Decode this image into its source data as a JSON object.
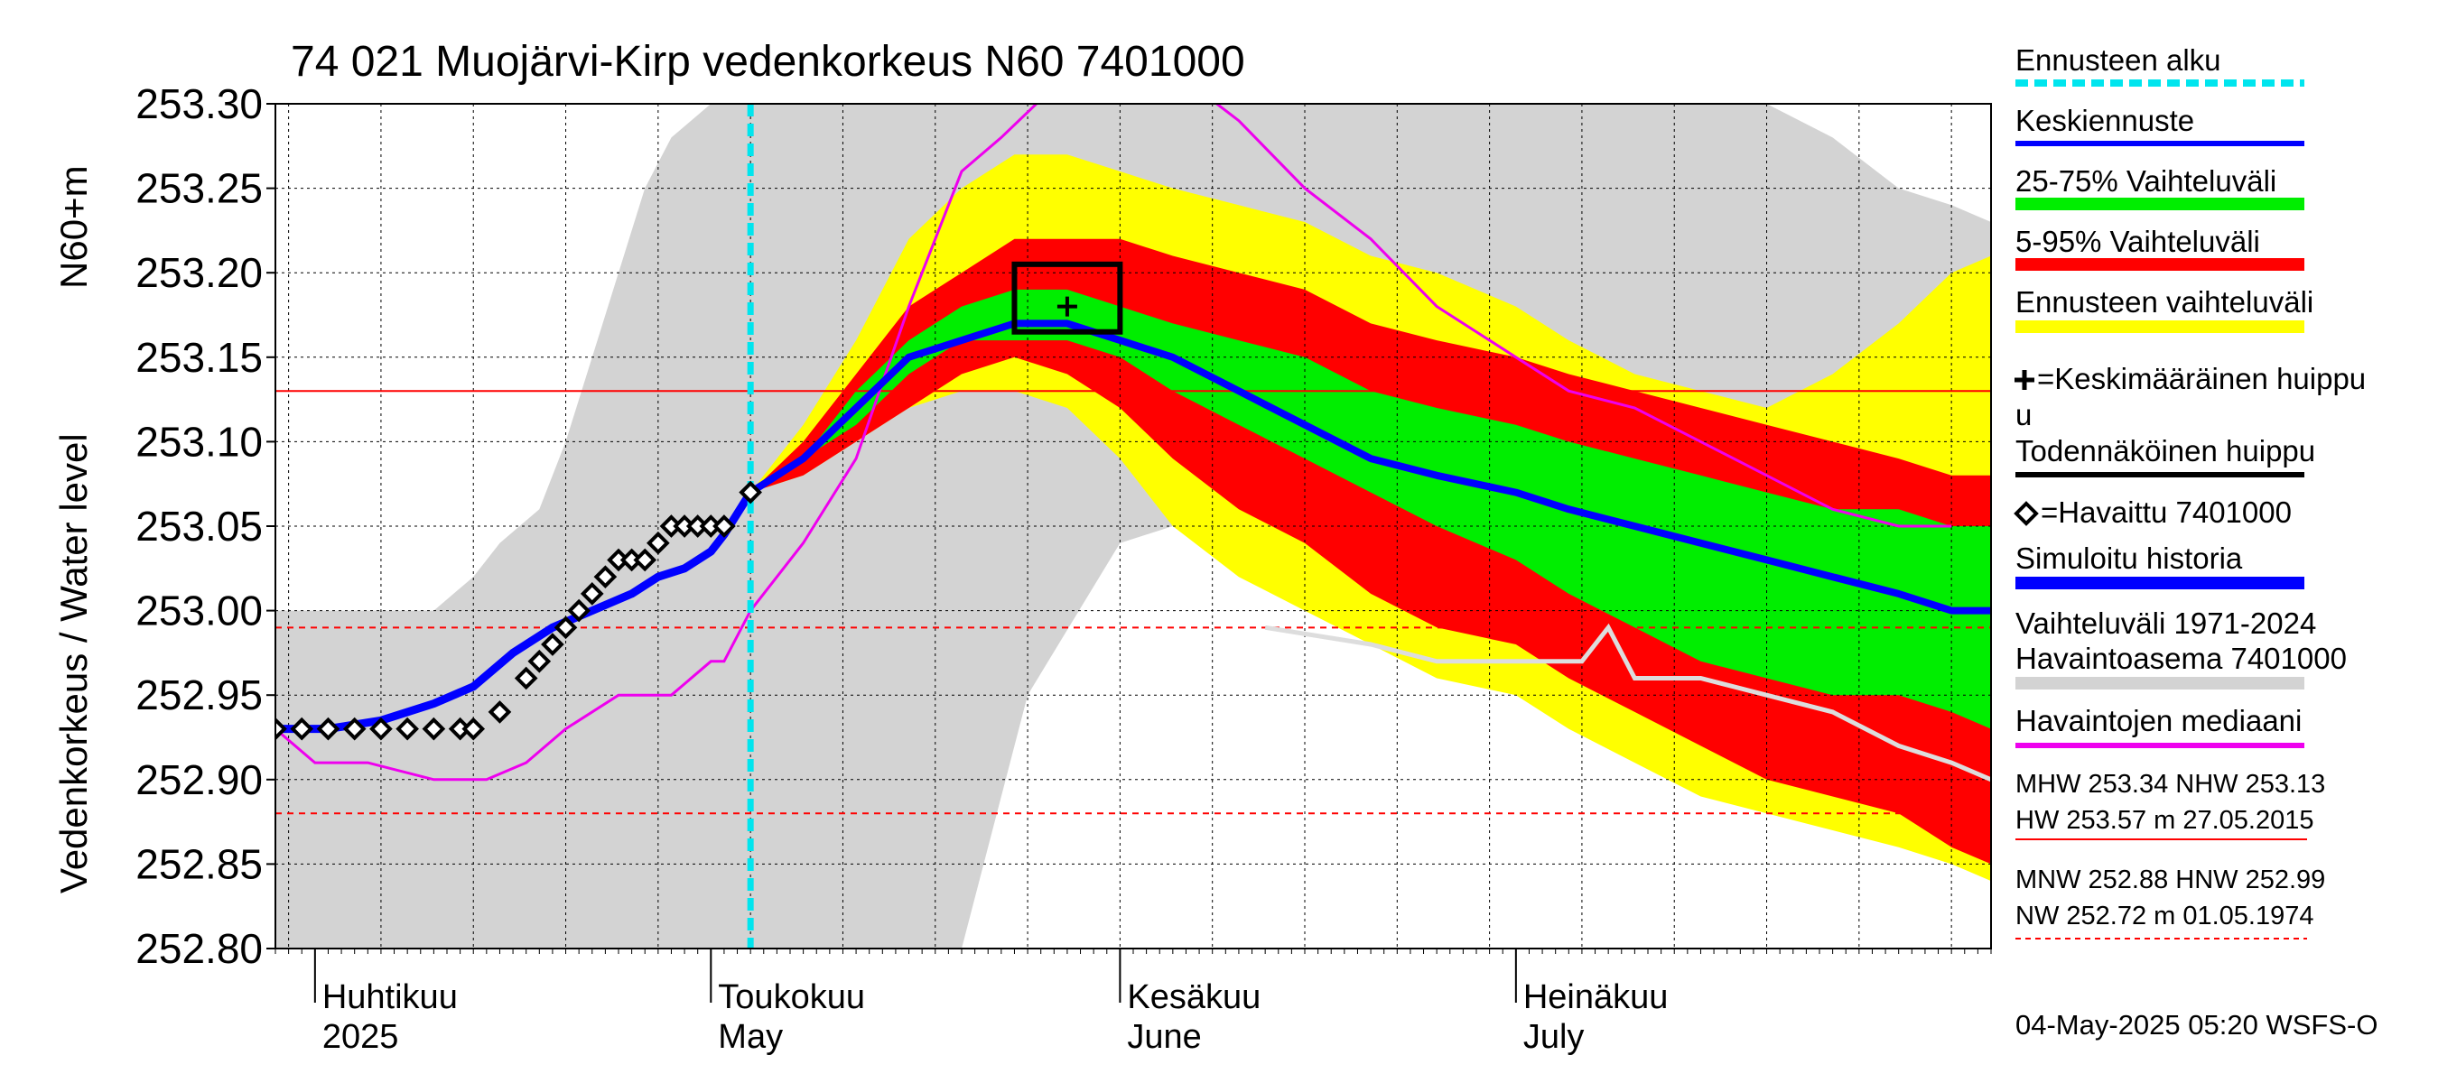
{
  "colors": {
    "history_band": "#d3d3d3",
    "forecast_range": "#ffff00",
    "p5_95": "#ff0000",
    "p25_75": "#00ee00",
    "median_forecast": "#0000ff",
    "simulated": "#0000ff",
    "observed_median": "#ee00ee",
    "observed": "#000000",
    "forecast_start": "#00e5ee",
    "station_gray": "#dddddd",
    "ref_line": "#ff0000"
  },
  "chart_data": {
    "type": "line",
    "title": "74 021 Muojärvi-Kirp vedenkorkeus N60 7401000",
    "ylabel": "Vedenkorkeus / Water level",
    "ylabel_unit": "N60+m",
    "ylim": [
      252.8,
      253.3
    ],
    "y_ticks": [
      "252.80",
      "252.85",
      "252.90",
      "252.95",
      "253.00",
      "253.05",
      "253.10",
      "253.15",
      "253.20",
      "253.25",
      "253.30"
    ],
    "xlim": [
      "2025-03-29",
      "2025-08-06"
    ],
    "grid": true,
    "month_labels": [
      {
        "date": "2025-04-01",
        "fi": "Huhtikuu",
        "en": "2025"
      },
      {
        "date": "2025-05-01",
        "fi": "Toukokuu",
        "en": "May"
      },
      {
        "date": "2025-06-01",
        "fi": "Kesäkuu",
        "en": "June"
      },
      {
        "date": "2025-07-01",
        "fi": "Heinäkuu",
        "en": "July"
      }
    ],
    "forecast_start": "2025-05-04",
    "reference_lines": [
      {
        "y": 253.13,
        "style": "solid"
      },
      {
        "y": 252.99,
        "style": "dashed"
      },
      {
        "y": 252.88,
        "style": "dashed"
      }
    ],
    "history_band": {
      "x": [
        "2025-03-29",
        "2025-04-01",
        "2025-04-05",
        "2025-04-10",
        "2025-04-13",
        "2025-04-15",
        "2025-04-18",
        "2025-04-20",
        "2025-04-22",
        "2025-04-24",
        "2025-04-26",
        "2025-04-28",
        "2025-05-01",
        "2025-05-02",
        "2025-05-04",
        "2025-05-10",
        "2025-05-15",
        "2025-05-20",
        "2025-05-25",
        "2025-06-01",
        "2025-06-05",
        "2025-06-10",
        "2025-06-15",
        "2025-06-20",
        "2025-06-25",
        "2025-07-01",
        "2025-07-05",
        "2025-07-10",
        "2025-07-15",
        "2025-07-20",
        "2025-07-25",
        "2025-07-30",
        "2025-08-03",
        "2025-08-06"
      ],
      "lower": [
        252.8,
        252.8,
        252.8,
        252.8,
        252.8,
        252.8,
        252.8,
        252.8,
        252.8,
        252.8,
        252.8,
        252.8,
        252.8,
        252.8,
        252.8,
        252.8,
        252.8,
        252.8,
        252.95,
        253.04,
        253.05,
        253.05,
        253.05,
        253.05,
        253.05,
        253.05,
        253.05,
        253.05,
        253.05,
        253.05,
        253.05,
        253.05,
        253.05,
        253.05
      ],
      "upper": [
        253.0,
        253.0,
        253.0,
        253.0,
        253.02,
        253.04,
        253.06,
        253.1,
        253.15,
        253.2,
        253.25,
        253.28,
        253.3,
        253.3,
        253.3,
        253.3,
        253.3,
        253.3,
        253.3,
        253.3,
        253.3,
        253.3,
        253.3,
        253.3,
        253.3,
        253.3,
        253.3,
        253.3,
        253.3,
        253.3,
        253.28,
        253.25,
        253.24,
        253.23
      ]
    },
    "forecast": {
      "x": [
        "2025-05-04",
        "2025-05-08",
        "2025-05-12",
        "2025-05-16",
        "2025-05-20",
        "2025-05-24",
        "2025-05-28",
        "2025-06-01",
        "2025-06-05",
        "2025-06-10",
        "2025-06-15",
        "2025-06-20",
        "2025-06-25",
        "2025-07-01",
        "2025-07-05",
        "2025-07-10",
        "2025-07-15",
        "2025-07-20",
        "2025-07-25",
        "2025-07-30",
        "2025-08-03",
        "2025-08-06"
      ],
      "min": [
        253.07,
        253.08,
        253.1,
        253.12,
        253.13,
        253.13,
        253.12,
        253.09,
        253.05,
        253.02,
        253.0,
        252.98,
        252.96,
        252.95,
        252.93,
        252.91,
        252.89,
        252.88,
        252.87,
        252.86,
        252.85,
        252.84
      ],
      "p5": [
        253.07,
        253.08,
        253.1,
        253.12,
        253.14,
        253.15,
        253.14,
        253.12,
        253.09,
        253.06,
        253.04,
        253.01,
        252.99,
        252.98,
        252.96,
        252.94,
        252.92,
        252.9,
        252.89,
        252.88,
        252.86,
        252.85
      ],
      "p25": [
        253.07,
        253.09,
        253.11,
        253.14,
        253.16,
        253.16,
        253.16,
        253.15,
        253.13,
        253.11,
        253.09,
        253.07,
        253.05,
        253.03,
        253.01,
        252.99,
        252.97,
        252.96,
        252.95,
        252.95,
        252.94,
        252.93
      ],
      "median": [
        253.07,
        253.09,
        253.12,
        253.15,
        253.16,
        253.17,
        253.17,
        253.16,
        253.15,
        253.13,
        253.11,
        253.09,
        253.08,
        253.07,
        253.06,
        253.05,
        253.04,
        253.03,
        253.02,
        253.01,
        253.0,
        253.0
      ],
      "p75": [
        253.07,
        253.09,
        253.13,
        253.16,
        253.18,
        253.19,
        253.19,
        253.18,
        253.17,
        253.16,
        253.15,
        253.13,
        253.12,
        253.11,
        253.1,
        253.09,
        253.08,
        253.07,
        253.06,
        253.06,
        253.05,
        253.05
      ],
      "p95": [
        253.07,
        253.1,
        253.14,
        253.18,
        253.2,
        253.22,
        253.22,
        253.22,
        253.21,
        253.2,
        253.19,
        253.17,
        253.16,
        253.15,
        253.14,
        253.13,
        253.12,
        253.11,
        253.1,
        253.09,
        253.08,
        253.08
      ],
      "max": [
        253.07,
        253.11,
        253.16,
        253.22,
        253.25,
        253.27,
        253.27,
        253.26,
        253.25,
        253.24,
        253.23,
        253.21,
        253.2,
        253.18,
        253.16,
        253.14,
        253.13,
        253.12,
        253.14,
        253.17,
        253.2,
        253.21
      ]
    },
    "simulated_history": {
      "x": [
        "2025-03-29",
        "2025-04-02",
        "2025-04-06",
        "2025-04-10",
        "2025-04-13",
        "2025-04-16",
        "2025-04-19",
        "2025-04-22",
        "2025-04-25",
        "2025-04-27",
        "2025-04-29",
        "2025-05-01",
        "2025-05-02",
        "2025-05-04"
      ],
      "y": [
        252.93,
        252.93,
        252.935,
        252.945,
        252.955,
        252.975,
        252.99,
        253.0,
        253.01,
        253.02,
        253.025,
        253.035,
        253.045,
        253.07
      ]
    },
    "observed": {
      "x": [
        "2025-03-29",
        "2025-03-31",
        "2025-04-02",
        "2025-04-04",
        "2025-04-06",
        "2025-04-08",
        "2025-04-10",
        "2025-04-12",
        "2025-04-13",
        "2025-04-15",
        "2025-04-17",
        "2025-04-18",
        "2025-04-19",
        "2025-04-20",
        "2025-04-21",
        "2025-04-22",
        "2025-04-23",
        "2025-04-24",
        "2025-04-25",
        "2025-04-26",
        "2025-04-27",
        "2025-04-28",
        "2025-04-29",
        "2025-04-30",
        "2025-05-01",
        "2025-05-02",
        "2025-05-04"
      ],
      "y": [
        252.93,
        252.93,
        252.93,
        252.93,
        252.93,
        252.93,
        252.93,
        252.93,
        252.93,
        252.94,
        252.96,
        252.97,
        252.98,
        252.99,
        253.0,
        253.01,
        253.02,
        253.03,
        253.03,
        253.03,
        253.04,
        253.05,
        253.05,
        253.05,
        253.05,
        253.05,
        253.07
      ]
    },
    "observed_median": {
      "x": [
        "2025-03-29",
        "2025-04-01",
        "2025-04-05",
        "2025-04-10",
        "2025-04-14",
        "2025-04-17",
        "2025-04-20",
        "2025-04-24",
        "2025-04-28",
        "2025-05-01",
        "2025-05-02",
        "2025-05-04",
        "2025-05-08",
        "2025-05-12",
        "2025-05-16",
        "2025-05-18",
        "2025-05-20",
        "2025-05-23",
        "2025-05-27",
        "2025-06-01",
        "2025-06-05",
        "2025-06-10",
        "2025-06-15",
        "2025-06-20",
        "2025-06-25",
        "2025-07-01",
        "2025-07-05",
        "2025-07-10",
        "2025-07-15",
        "2025-07-20",
        "2025-07-25",
        "2025-07-30",
        "2025-08-03"
      ],
      "y": [
        252.93,
        252.91,
        252.91,
        252.9,
        252.9,
        252.91,
        252.93,
        252.95,
        252.95,
        252.97,
        252.97,
        253.0,
        253.04,
        253.09,
        253.18,
        253.22,
        253.26,
        253.28,
        253.31,
        253.35,
        253.32,
        253.29,
        253.25,
        253.22,
        253.18,
        253.15,
        253.13,
        253.12,
        253.1,
        253.08,
        253.06,
        253.05,
        253.05
      ]
    },
    "station_history": {
      "x": [
        "2025-06-12",
        "2025-06-20",
        "2025-06-25",
        "2025-07-01",
        "2025-07-06",
        "2025-07-08",
        "2025-07-10",
        "2025-07-15",
        "2025-07-20",
        "2025-07-25",
        "2025-07-30",
        "2025-08-03",
        "2025-08-06"
      ],
      "y": [
        252.99,
        252.98,
        252.97,
        252.97,
        252.97,
        252.99,
        252.96,
        252.96,
        252.95,
        252.94,
        252.92,
        252.91,
        252.9
      ]
    },
    "peak_box": {
      "x0": "2025-05-24",
      "x1": "2025-06-01",
      "y0": 253.165,
      "y1": 253.205
    },
    "mean_peak": {
      "x": "2025-05-28",
      "y": 253.18
    },
    "legend": [
      {
        "label": "Ennusteen alku",
        "kind": "dashed",
        "color": "#00e5ee"
      },
      {
        "label": "Keskiennuste",
        "kind": "line",
        "color": "#0000ff"
      },
      {
        "label": "25-75% Vaihteluväli",
        "kind": "thick",
        "color": "#00ee00"
      },
      {
        "label": "5-95% Vaihteluväli",
        "kind": "thick",
        "color": "#ff0000"
      },
      {
        "label": "Ennusteen vaihteluväli",
        "kind": "thick",
        "color": "#ffff00"
      },
      {
        "label": "=Keskimääräinen huippu",
        "label_line2": "u",
        "kind": "plus",
        "color": "#000000"
      },
      {
        "label": "Todennäköinen huippu",
        "kind": "line",
        "color": "#000000"
      },
      {
        "label": "=Havaittu 7401000",
        "kind": "diamond",
        "color": "#000000"
      },
      {
        "label": "Simuloitu historia",
        "kind": "thick",
        "color": "#0000ff"
      },
      {
        "label": "Vaihteluväli 1971-2024",
        "label_line2": " Havaintoasema 7401000",
        "kind": "thick",
        "color": "#d3d3d3"
      },
      {
        "label": "Havaintojen mediaani",
        "kind": "line",
        "color": "#ee00ee"
      }
    ],
    "stats": {
      "line1": "MHW 253.34 NHW 253.13",
      "line2": "HW 253.57 m 27.05.2015",
      "line3": "MNW 252.88 HNW 252.99",
      "line4": "NW 252.72 m 01.05.1974"
    },
    "footer": "04-May-2025 05:20 WSFS-O"
  }
}
